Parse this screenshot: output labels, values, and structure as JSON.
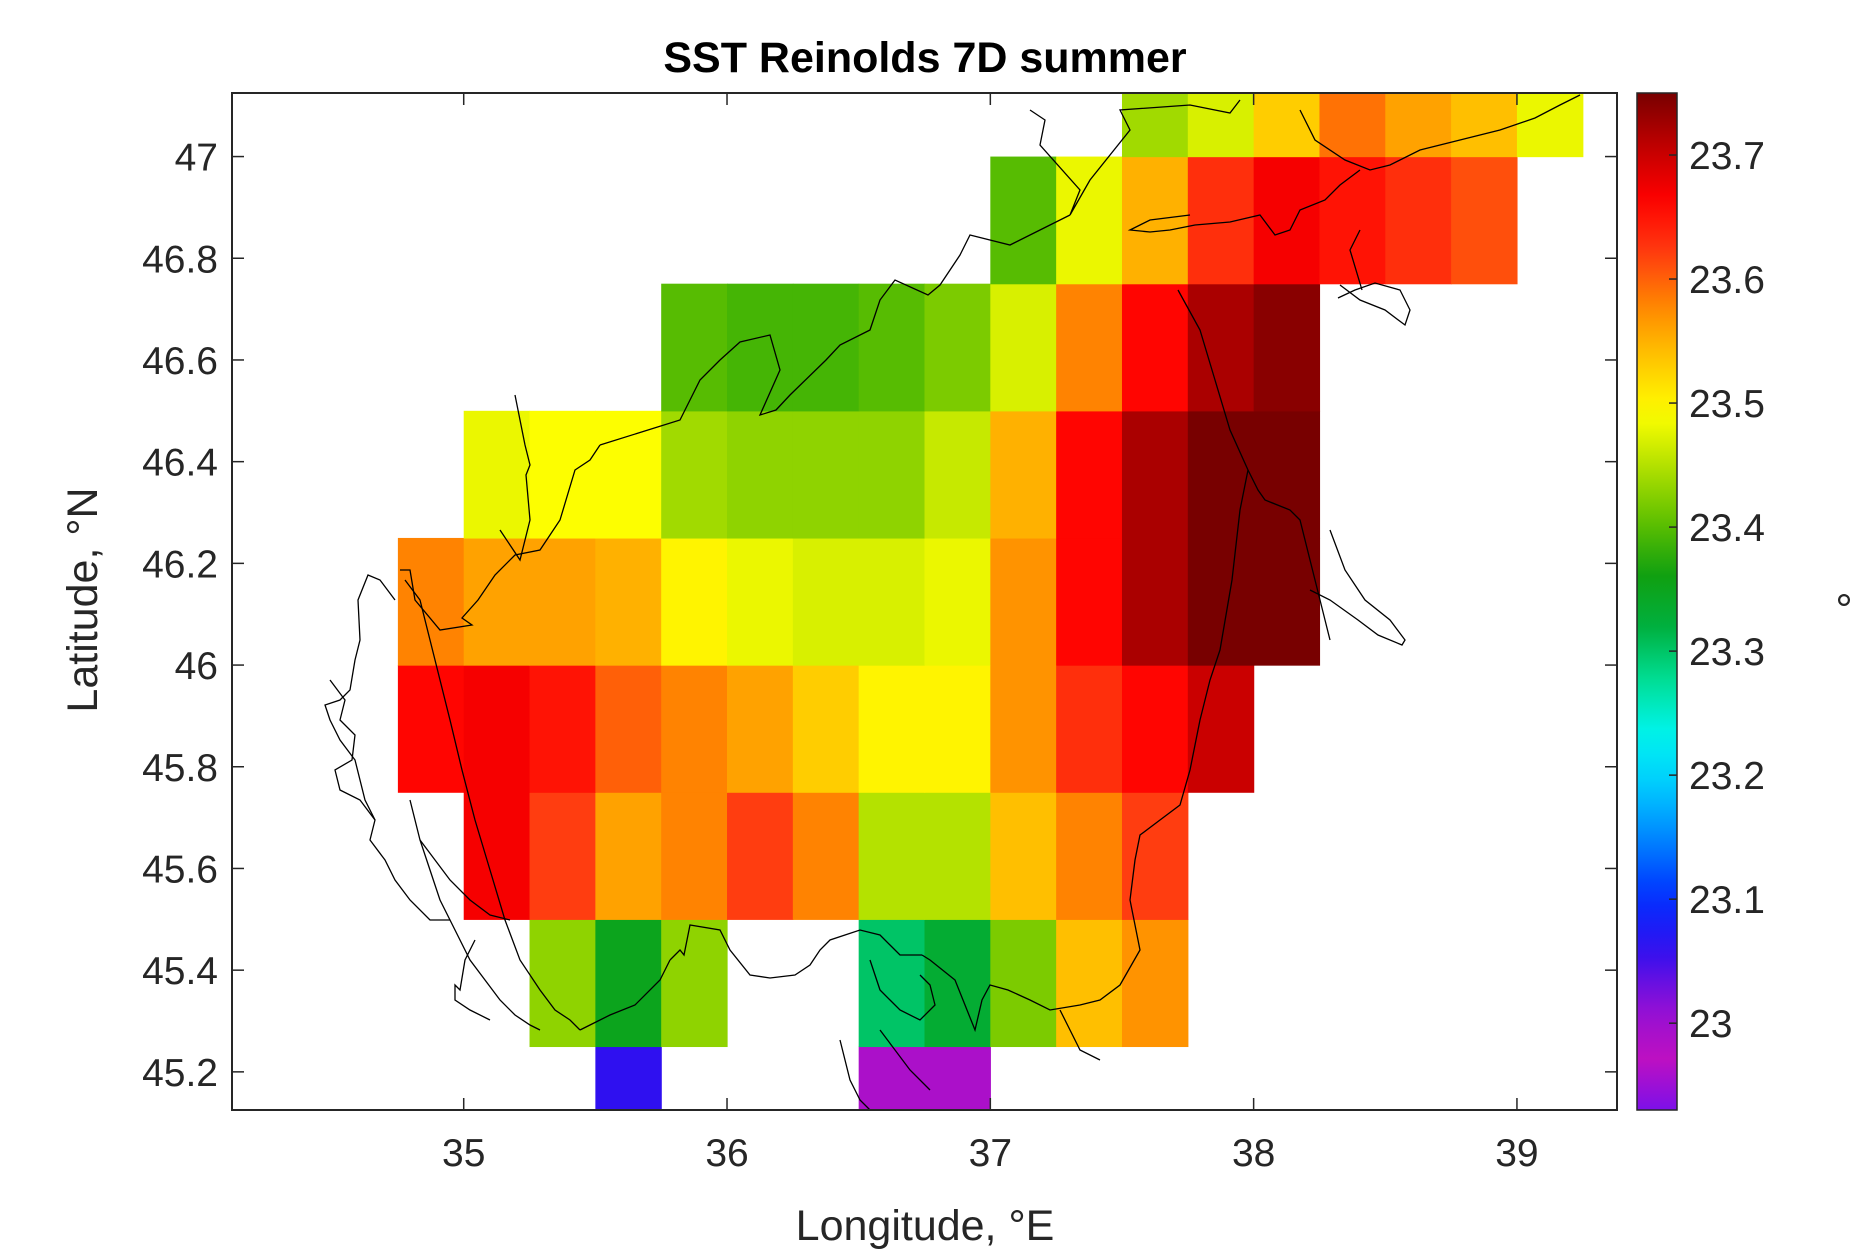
{
  "chart_data": {
    "type": "heatmap",
    "title": "SST Reinolds 7D summer",
    "xlabel": "Longitude, °E",
    "ylabel": "Latitude, °N",
    "colorbar_label": "°",
    "xlim": [
      34.12,
      39.38
    ],
    "ylim": [
      45.125,
      47.125
    ],
    "xticks": [
      "35",
      "36",
      "37",
      "38",
      "39"
    ],
    "yticks": [
      "45.2",
      "45.4",
      "45.6",
      "45.8",
      "46",
      "46.2",
      "46.4",
      "46.6",
      "46.8",
      "47"
    ],
    "colorbar_ticks": [
      "23",
      "23.1",
      "23.2",
      "23.3",
      "23.4",
      "23.5",
      "23.6",
      "23.7"
    ],
    "clim": [
      22.93,
      23.75
    ],
    "colormap": [
      "#7d10e8",
      "#c010c0",
      "#8a10d8",
      "#3010f0",
      "#0030ff",
      "#0080ff",
      "#00c8ff",
      "#00f4f0",
      "#00e098",
      "#00b040",
      "#10a010",
      "#60c000",
      "#b0e000",
      "#ffff00",
      "#ffc800",
      "#ff8800",
      "#ff3c10",
      "#ff0000",
      "#c00000",
      "#780000"
    ],
    "grid": false,
    "cell_size_deg": 0.25,
    "rows": [
      {
        "lat": 45.125,
        "lon_start": 35.5,
        "values": [
          23.06,
          null,
          null,
          null,
          22.99,
          22.99
        ]
      },
      {
        "lat": 45.375,
        "lon_start": 35.25,
        "values": [
          23.43,
          23.35,
          23.43,
          null,
          null,
          23.3,
          23.33,
          23.42,
          23.54,
          23.57
        ]
      },
      {
        "lat": 45.625,
        "lon_start": 35.0,
        "values": [
          23.67,
          23.62,
          23.56,
          23.58,
          23.62,
          23.58,
          23.45,
          23.45,
          23.54,
          23.58,
          23.62
        ]
      },
      {
        "lat": 45.875,
        "lon_start": 34.75,
        "values": [
          23.66,
          23.67,
          23.65,
          23.6,
          23.58,
          23.56,
          23.53,
          23.5,
          23.5,
          23.57,
          23.63,
          23.66,
          23.7
        ]
      },
      {
        "lat": 46.125,
        "lon_start": 34.75,
        "values": [
          23.58,
          23.56,
          23.56,
          23.55,
          23.5,
          23.48,
          23.47,
          23.47,
          23.48,
          23.57,
          23.66,
          23.72,
          23.75,
          23.75
        ]
      },
      {
        "lat": 46.375,
        "lon_start": 35.0,
        "values": [
          23.48,
          23.49,
          23.49,
          23.44,
          23.43,
          23.43,
          23.43,
          23.46,
          23.55,
          23.66,
          23.72,
          23.75,
          23.75
        ]
      },
      {
        "lat": 46.625,
        "lon_start": 35.75,
        "values": [
          23.4,
          23.39,
          23.39,
          23.4,
          23.42,
          23.47,
          23.58,
          23.66,
          23.72,
          23.74
        ]
      },
      {
        "lat": 46.875,
        "lon_start": 37.0,
        "values": [
          23.4,
          23.48,
          23.55,
          23.63,
          23.67,
          23.65,
          23.63,
          23.61
        ]
      },
      {
        "lat": 47.125,
        "lon_start": 37.5,
        "values": [
          23.44,
          23.47,
          23.53,
          23.59,
          23.56,
          23.54,
          23.48
        ]
      }
    ]
  }
}
